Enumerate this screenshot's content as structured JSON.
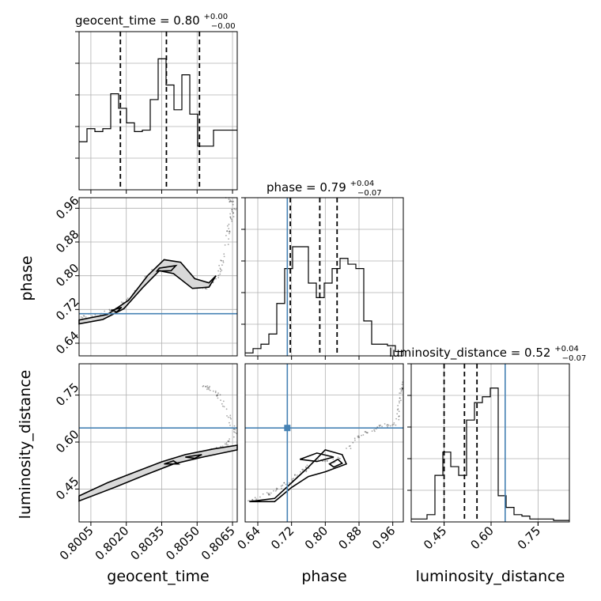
{
  "chart_data": {
    "type": "corner",
    "parameters": [
      {
        "name": "geocent_time",
        "axis_label": "geocent_time",
        "title_prefix": "geocent_time = ",
        "title_median": "0.80",
        "title_plus": "+0.00",
        "title_minus": "−0.00",
        "range": [
          0.8,
          0.8067
        ],
        "ticks": [
          0.8005,
          0.802,
          0.8035,
          0.805,
          0.8065
        ],
        "tick_labels": [
          "0.8005",
          "0.8020",
          "0.8035",
          "0.8050",
          "0.8065"
        ],
        "quantiles": [
          0.80175,
          0.8037,
          0.8051
        ],
        "truth": null,
        "hist_edges_start": 0.8,
        "hist_bin_width": 0.000335,
        "hist_counts": [
          0.33,
          0.42,
          0.4,
          0.42,
          0.66,
          0.56,
          0.46,
          0.4,
          0.41,
          0.62,
          0.9,
          0.72,
          0.55,
          0.79,
          0.52,
          0.3,
          0.3,
          0.41,
          0.41,
          0.41
        ]
      },
      {
        "name": "phase",
        "axis_label": "phase",
        "title_prefix": "phase = ",
        "title_median": "0.79",
        "title_plus": "+0.04",
        "title_minus": "−0.07",
        "range": [
          0.61,
          0.985
        ],
        "ticks": [
          0.64,
          0.72,
          0.8,
          0.88,
          0.96
        ],
        "tick_labels": [
          "0.64",
          "0.72",
          "0.80",
          "0.88",
          "0.96"
        ],
        "quantiles": [
          0.717,
          0.787,
          0.828
        ],
        "truth": 0.71,
        "hist_edges_start": 0.61,
        "hist_bin_width": 0.01875,
        "hist_counts": [
          0.02,
          0.05,
          0.08,
          0.15,
          0.36,
          0.6,
          0.75,
          0.75,
          0.5,
          0.4,
          0.5,
          0.6,
          0.67,
          0.63,
          0.6,
          0.24,
          0.08,
          0.08,
          0.07,
          0.03
        ]
      },
      {
        "name": "luminosity_distance",
        "axis_label": "luminosity_distance",
        "title_prefix": "luminosity_distance = ",
        "title_median": "0.52",
        "title_plus": "+0.04",
        "title_minus": "−0.07",
        "range": [
          0.345,
          0.85
        ],
        "ticks": [
          0.45,
          0.6,
          0.75
        ],
        "tick_labels": [
          "0.45",
          "0.60",
          "0.75"
        ],
        "quantiles": [
          0.45,
          0.515,
          0.555
        ],
        "truth": 0.645,
        "hist_edges_start": 0.345,
        "hist_bin_width": 0.02525,
        "hist_counts": [
          0.02,
          0.02,
          0.05,
          0.32,
          0.48,
          0.38,
          0.32,
          0.7,
          0.82,
          0.86,
          0.92,
          0.18,
          0.1,
          0.05,
          0.04,
          0.02,
          0.02,
          0.02,
          0.01,
          0.01
        ]
      }
    ],
    "pair_truths": {
      "phase_vs_geocent_time": {
        "y": 0.71
      },
      "luminosity_distance_vs_geocent_time": {
        "y": 0.645
      },
      "luminosity_distance_vs_phase": {
        "x": 0.71,
        "y": 0.645
      }
    },
    "grid": true,
    "colors": {
      "truth": "#4682b4",
      "contour_fill": "#d9d9d9",
      "line": "#000000"
    }
  }
}
